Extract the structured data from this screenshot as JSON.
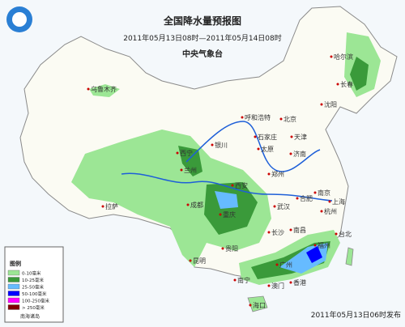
{
  "header": {
    "title": "全国降水量预报图",
    "period": "2011年05月13日08时—2011年05月14日08时",
    "issuer": "中央气象台"
  },
  "cities": [
    "乌鲁木齐",
    "哈尔滨",
    "长春",
    "沈阳",
    "呼和浩特",
    "北京",
    "天津",
    "石家庄",
    "太原",
    "银川",
    "西宁",
    "兰州",
    "济南",
    "郑州",
    "西安",
    "合肥",
    "南京",
    "上海",
    "武汉",
    "杭州",
    "成都",
    "重庆",
    "长沙",
    "南昌",
    "贵阳",
    "福州",
    "拉萨",
    "昆明",
    "南宁",
    "广州",
    "澳门",
    "香港",
    "海口",
    "台北"
  ],
  "legend": {
    "title": "图例",
    "items": [
      {
        "label": "0-10毫米",
        "color": "#9ce695"
      },
      {
        "label": "10-25毫米",
        "color": "#3a9a3a"
      },
      {
        "label": "25-50毫米",
        "color": "#66bbff"
      },
      {
        "label": "50-100毫米",
        "color": "#0000ff"
      },
      {
        "label": "100-250毫米",
        "color": "#ff00ff"
      },
      {
        "label": "> 250毫米",
        "color": "#800000"
      }
    ]
  },
  "inset": {
    "label": "南海诸岛"
  },
  "footer": "2011年05月13日06时发布"
}
